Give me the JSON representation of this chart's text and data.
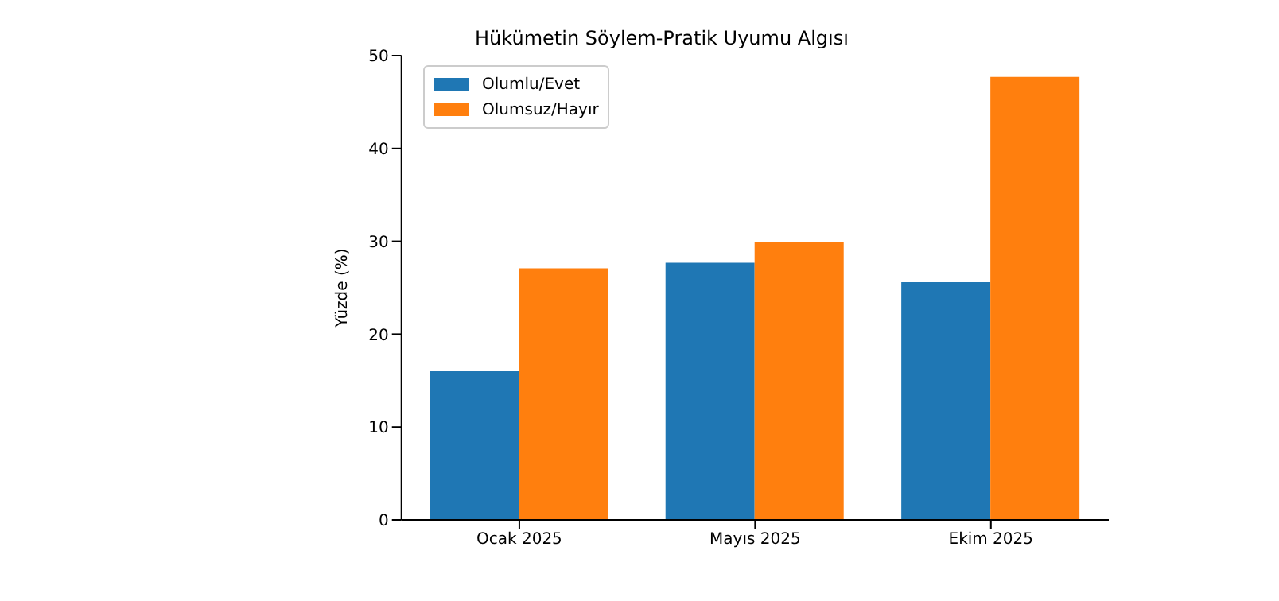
{
  "chart_data": {
    "type": "bar",
    "title": "Hükümetin Söylem-Pratik Uyumu Algısı",
    "ylabel": "Yüzde (%)",
    "categories": [
      "Ocak 2025",
      "Mayıs 2025",
      "Ekim 2025"
    ],
    "series": [
      {
        "name": "Olumlu/Evet",
        "color": "#1f77b4",
        "values": [
          16.0,
          27.7,
          25.6
        ]
      },
      {
        "name": "Olumsuz/Hayır",
        "color": "#ff7f0e",
        "values": [
          27.1,
          29.9,
          47.7
        ]
      }
    ],
    "ylim": [
      0,
      50
    ],
    "yticks": [
      0,
      10,
      20,
      30,
      40,
      50
    ],
    "grid": false,
    "legend": "top left"
  }
}
